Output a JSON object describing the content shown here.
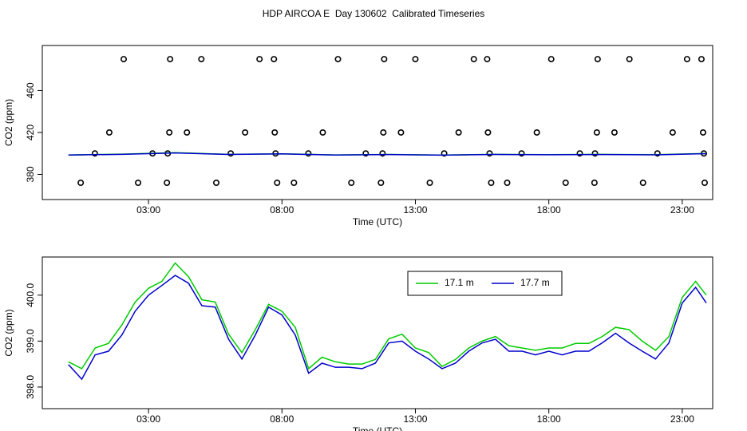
{
  "title": "HDP AIRCOA E  Day 130602  Calibrated Timeseries",
  "chart_data": [
    {
      "type": "line",
      "x_label": "Time (UTC)",
      "y_label": "CO2 (ppm)",
      "xlim": [
        -0.98,
        24.14
      ],
      "ylim": [
        356,
        503
      ],
      "xticks": [
        {
          "value": 3,
          "label": "03:00"
        },
        {
          "value": 8,
          "label": "08:00"
        },
        {
          "value": 13,
          "label": "13:00"
        },
        {
          "value": 18,
          "label": "18:00"
        },
        {
          "value": 23,
          "label": "23:00"
        }
      ],
      "yticks": [
        380,
        420,
        460
      ],
      "series": [
        {
          "style": "points",
          "color": "#000000",
          "x": [
            2.07,
            3.81,
            4.98,
            7.16,
            7.7,
            10.1,
            11.83,
            13.0,
            15.19,
            15.69,
            18.09,
            19.83,
            21.02,
            23.18,
            23.72,
            1.53,
            3.78,
            4.44,
            6.62,
            7.73,
            9.53,
            11.8,
            12.46,
            14.62,
            15.72,
            17.55,
            19.8,
            20.46,
            22.64,
            23.78,
            0.99,
            3.15,
            3.72,
            6.08,
            7.76,
            8.99,
            11.14,
            11.77,
            14.08,
            15.78,
            16.98,
            19.16,
            19.73,
            22.07,
            23.81,
            0.46,
            2.61,
            3.69,
            5.54,
            7.82,
            8.45,
            10.6,
            11.71,
            13.54,
            15.84,
            16.44,
            18.63,
            19.71,
            21.53,
            23.84
          ],
          "values": [
            490,
            490,
            490,
            490,
            490,
            490,
            490,
            490,
            490,
            490,
            490,
            490,
            490,
            490,
            490,
            420,
            420,
            420,
            420,
            420,
            420,
            420,
            420,
            420,
            420,
            420,
            420,
            420,
            420,
            420,
            400,
            400,
            400,
            400,
            400,
            400,
            400,
            400,
            400,
            400,
            400,
            400,
            400,
            400,
            400,
            372,
            372,
            372,
            372,
            372,
            372,
            372,
            372,
            372,
            372,
            372,
            372,
            372,
            372,
            372
          ]
        },
        {
          "style": "line",
          "color": "#00cc00",
          "x": [
            0,
            2,
            4,
            6,
            8,
            10,
            12,
            14,
            16,
            18,
            20,
            22,
            23.9
          ],
          "values": [
            398.55,
            399.35,
            400.7,
            399.15,
            399.65,
            398.55,
            399.05,
            398.45,
            399.1,
            398.85,
            399.1,
            398.8,
            400.0
          ]
        },
        {
          "style": "line",
          "color": "#0000cc",
          "x": [
            0,
            2,
            4,
            6,
            8,
            10,
            12,
            14,
            16,
            18,
            20,
            22,
            23.9
          ],
          "values": [
            398.49,
            399.13,
            400.43,
            399.04,
            399.57,
            398.43,
            398.96,
            398.4,
            399.04,
            398.78,
            398.96,
            398.61,
            399.83
          ]
        }
      ]
    },
    {
      "type": "line",
      "x_label": "Time (UTC)",
      "y_label": "CO2 (ppm)",
      "xlim": [
        -0.98,
        24.14
      ],
      "ylim": [
        397.53,
        400.83
      ],
      "xticks": [
        {
          "value": 3,
          "label": "03:00"
        },
        {
          "value": 8,
          "label": "08:00"
        },
        {
          "value": 13,
          "label": "13:00"
        },
        {
          "value": 18,
          "label": "18:00"
        },
        {
          "value": 23,
          "label": "23:00"
        }
      ],
      "yticks": [
        {
          "value": 398,
          "label": "398.0"
        },
        {
          "value": 399,
          "label": "399.0"
        },
        {
          "value": 400,
          "label": "400.0"
        }
      ],
      "legend": "top-right",
      "series": [
        {
          "name": "17.1 m",
          "style": "line",
          "color": "#00cc00",
          "x": [
            0,
            0.5,
            1,
            1.5,
            2,
            2.5,
            3,
            3.5,
            4,
            4.5,
            5,
            5.5,
            6,
            6.5,
            7,
            7.5,
            8,
            8.5,
            9,
            9.5,
            10,
            10.5,
            11,
            11.5,
            12,
            12.5,
            13,
            13.5,
            14,
            14.5,
            15,
            15.5,
            16,
            16.5,
            17,
            17.5,
            18,
            18.5,
            19,
            19.5,
            20,
            20.5,
            21,
            21.5,
            22,
            22.5,
            23,
            23.5,
            23.9
          ],
          "values": [
            398.55,
            398.4,
            398.85,
            398.95,
            399.35,
            399.85,
            400.15,
            400.3,
            400.7,
            400.4,
            399.9,
            399.85,
            399.15,
            398.75,
            399.25,
            399.8,
            399.65,
            399.3,
            398.4,
            398.65,
            398.55,
            398.5,
            398.5,
            398.6,
            399.05,
            399.15,
            398.85,
            398.75,
            398.45,
            398.6,
            398.85,
            399.0,
            399.1,
            398.9,
            398.85,
            398.8,
            398.85,
            398.85,
            398.95,
            398.95,
            399.1,
            399.3,
            399.25,
            399.0,
            398.8,
            399.1,
            399.95,
            400.3,
            400.0
          ]
        },
        {
          "name": "17.7 m",
          "style": "line",
          "color": "#0000cc",
          "x": [
            0,
            0.5,
            1,
            1.5,
            2,
            2.5,
            3,
            3.5,
            4,
            4.5,
            5,
            5.5,
            6,
            6.5,
            7,
            7.5,
            8,
            8.5,
            9,
            9.5,
            10,
            10.5,
            11,
            11.5,
            12,
            12.5,
            13,
            13.5,
            14,
            14.5,
            15,
            15.5,
            16,
            16.5,
            17,
            17.5,
            18,
            18.5,
            19,
            19.5,
            20,
            20.5,
            21,
            21.5,
            22,
            22.5,
            23,
            23.5,
            23.9
          ],
          "values": [
            398.49,
            398.17,
            398.7,
            398.78,
            399.13,
            399.65,
            400.0,
            400.21,
            400.43,
            400.26,
            399.77,
            399.74,
            399.04,
            398.61,
            399.13,
            399.74,
            399.57,
            399.13,
            398.3,
            398.52,
            398.43,
            398.43,
            398.4,
            398.52,
            398.96,
            399.0,
            398.78,
            398.61,
            398.4,
            398.52,
            398.78,
            398.96,
            399.04,
            398.78,
            398.78,
            398.7,
            398.78,
            398.7,
            398.78,
            398.78,
            398.96,
            399.17,
            398.96,
            398.78,
            398.61,
            398.96,
            399.83,
            400.17,
            399.83
          ]
        }
      ]
    }
  ]
}
